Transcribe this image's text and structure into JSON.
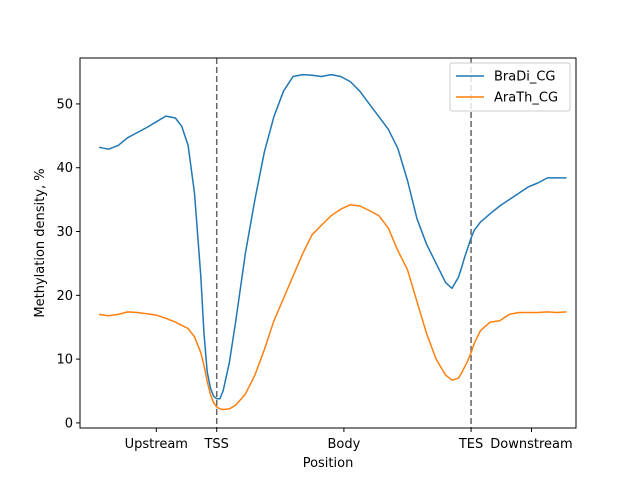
{
  "chart_data": {
    "type": "line",
    "title": "",
    "xlabel": "Position",
    "ylabel": "Methylation density, %",
    "ylim": [
      -0.8,
      57.2
    ],
    "xlim": [
      -0.3,
      15.3
    ],
    "yticks": [
      0,
      10,
      20,
      30,
      40,
      50
    ],
    "xticks": [
      {
        "x": 2.1,
        "label": "Upstream"
      },
      {
        "x": 4.0,
        "label": "TSS"
      },
      {
        "x": 8.0,
        "label": "Body"
      },
      {
        "x": 12.0,
        "label": "TES"
      },
      {
        "x": 13.9,
        "label": "Downstream"
      }
    ],
    "vlines": [
      4.0,
      12.0
    ],
    "grid": false,
    "legend_position": "top-right",
    "series": [
      {
        "name": "BraDi_CG",
        "color": "#1f77b4",
        "x": [
          0.3,
          0.6,
          0.9,
          1.2,
          1.5,
          1.8,
          2.1,
          2.4,
          2.7,
          2.9,
          3.1,
          3.3,
          3.5,
          3.6,
          3.7,
          3.8,
          3.9,
          4.0,
          4.1,
          4.2,
          4.4,
          4.6,
          4.9,
          5.2,
          5.5,
          5.8,
          6.1,
          6.4,
          6.7,
          7.0,
          7.3,
          7.6,
          7.9,
          8.2,
          8.5,
          8.8,
          9.1,
          9.4,
          9.7,
          10.0,
          10.3,
          10.6,
          10.9,
          11.2,
          11.4,
          11.6,
          11.7,
          11.8,
          11.9,
          12.0,
          12.1,
          12.3,
          12.6,
          12.9,
          13.2,
          13.5,
          13.8,
          14.1,
          14.4,
          14.7,
          15.0
        ],
        "values": [
          43.2,
          42.9,
          43.5,
          44.7,
          45.5,
          46.3,
          47.2,
          48.1,
          47.8,
          46.5,
          43.5,
          36,
          23,
          14,
          8,
          5.5,
          4.2,
          3.8,
          3.8,
          5,
          9.5,
          16,
          26.5,
          35,
          42.5,
          48,
          52,
          54.3,
          54.6,
          54.5,
          54.3,
          54.6,
          54.3,
          53.5,
          52,
          50,
          48,
          46,
          43,
          38,
          32,
          28,
          25,
          22,
          21.1,
          22.8,
          24.3,
          26,
          27.5,
          29,
          30.2,
          31.5,
          32.8,
          34,
          35,
          36,
          37,
          37.6,
          38.4,
          38.4,
          38.4
        ]
      },
      {
        "name": "AraTh_CG",
        "color": "#ff7f0e",
        "x": [
          0.3,
          0.6,
          0.9,
          1.2,
          1.5,
          1.8,
          2.1,
          2.4,
          2.7,
          2.9,
          3.1,
          3.3,
          3.5,
          3.6,
          3.7,
          3.8,
          3.9,
          4.0,
          4.1,
          4.2,
          4.4,
          4.6,
          4.9,
          5.2,
          5.5,
          5.8,
          6.1,
          6.4,
          6.7,
          7.0,
          7.3,
          7.6,
          7.9,
          8.2,
          8.5,
          8.8,
          9.1,
          9.4,
          9.7,
          10.0,
          10.3,
          10.6,
          10.9,
          11.2,
          11.4,
          11.6,
          11.7,
          11.8,
          11.9,
          12.0,
          12.1,
          12.3,
          12.6,
          12.9,
          13.2,
          13.5,
          13.8,
          14.1,
          14.4,
          14.7,
          15.0
        ],
        "values": [
          17,
          16.8,
          17,
          17.4,
          17.3,
          17.1,
          16.9,
          16.4,
          15.8,
          15.3,
          14.8,
          13.5,
          11,
          9,
          6.5,
          4.5,
          3.2,
          2.5,
          2.2,
          2.1,
          2.2,
          2.8,
          4.5,
          7.5,
          11.5,
          16,
          19.5,
          23,
          26.5,
          29.5,
          31,
          32.5,
          33.5,
          34.2,
          34,
          33.3,
          32.5,
          30.5,
          27,
          24,
          19,
          14,
          10,
          7.5,
          6.7,
          7,
          7.8,
          8.8,
          9.8,
          11,
          12.5,
          14.5,
          15.8,
          16,
          17,
          17.3,
          17.3,
          17.3,
          17.4,
          17.3,
          17.4
        ]
      }
    ]
  }
}
